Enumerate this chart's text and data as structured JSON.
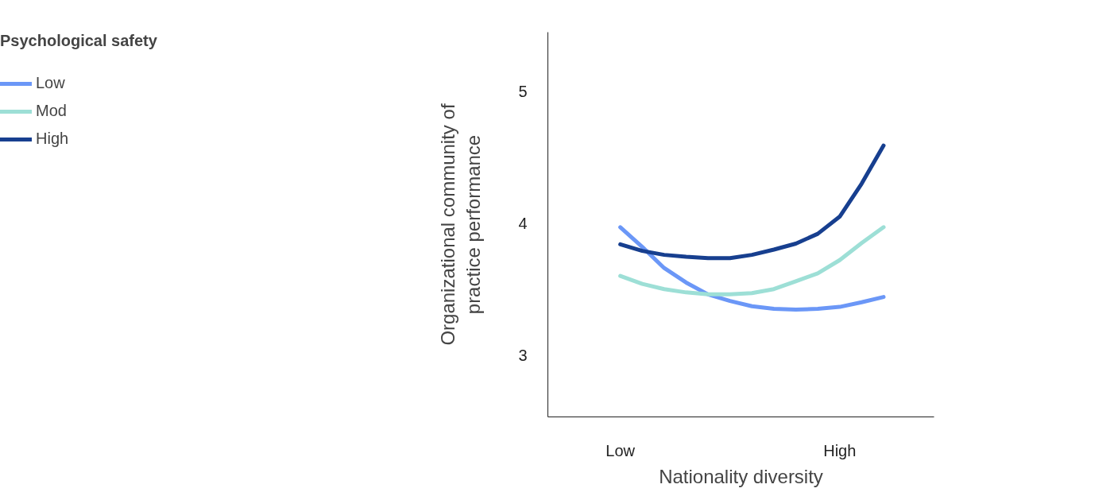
{
  "chart_data": {
    "type": "line",
    "xlabel": "Nationality diversity",
    "ylabel": "Organizational community of\npractice performance",
    "legend_title": "Psychological safety",
    "legend": "top left",
    "grid": false,
    "line_style": "solid",
    "marker": "none",
    "categories": [
      "Low",
      null,
      null,
      null,
      null,
      null,
      null,
      null,
      null,
      null,
      "High",
      null,
      null
    ],
    "ylim": [
      2.53,
      5.45
    ],
    "yticks": [
      3,
      4,
      5
    ],
    "series": [
      {
        "name": "Low",
        "color": "#6b97f7",
        "values": [
          3.97,
          3.82,
          3.66,
          3.55,
          3.46,
          3.41,
          3.37,
          3.35,
          3.345,
          3.35,
          3.365,
          3.4,
          3.44
        ]
      },
      {
        "name": "Mod",
        "color": "#9ddfd6",
        "values": [
          3.6,
          3.54,
          3.5,
          3.475,
          3.46,
          3.46,
          3.47,
          3.5,
          3.56,
          3.62,
          3.72,
          3.85,
          3.97
        ]
      },
      {
        "name": "High",
        "color": "#173f8f",
        "values": [
          3.84,
          3.79,
          3.76,
          3.745,
          3.735,
          3.735,
          3.76,
          3.8,
          3.845,
          3.92,
          4.05,
          4.3,
          4.59
        ]
      }
    ]
  }
}
